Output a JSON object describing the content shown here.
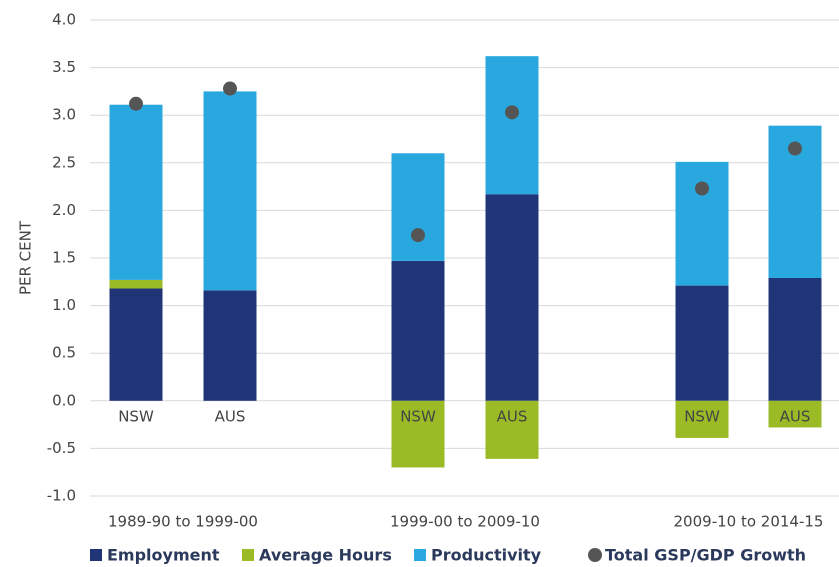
{
  "chart_data": {
    "type": "bar",
    "stacked": true,
    "y_label": "PER CENT",
    "categories": [
      "NSW",
      "AUS",
      "NSW",
      "AUS",
      "NSW",
      "AUS"
    ],
    "group_labels": [
      "1989-90 to 1999-00",
      "1999-00 to 2009-10",
      "2009-10 to 2014-15"
    ],
    "series": [
      {
        "name": "Employment",
        "type": "bar",
        "color": "#1f3578",
        "values": [
          1.18,
          1.16,
          1.47,
          2.17,
          1.21,
          1.29
        ]
      },
      {
        "name": "Average Hours",
        "type": "bar",
        "color": "#9bbb26",
        "values": [
          0.09,
          0,
          -0.7,
          -0.61,
          -0.39,
          -0.28
        ]
      },
      {
        "name": "Productivity",
        "type": "bar",
        "color": "#29a8e0",
        "values": [
          1.84,
          2.09,
          1.13,
          1.45,
          1.3,
          1.6
        ]
      },
      {
        "name": "Total GSP/GDP Growth",
        "type": "scatter",
        "color": "#555555",
        "values": [
          3.12,
          3.28,
          1.74,
          3.03,
          2.23,
          2.65
        ]
      }
    ],
    "ylim": [
      -1,
      4
    ],
    "yticks": [
      {
        "value": -1,
        "label": "-1.0"
      },
      {
        "value": -0.5,
        "label": "-0.5"
      },
      {
        "value": 0,
        "label": "0.0"
      },
      {
        "value": 0.5,
        "label": "0.5"
      },
      {
        "value": 1,
        "label": "1.0"
      },
      {
        "value": 1.5,
        "label": "1.5"
      },
      {
        "value": 2,
        "label": "2.0"
      },
      {
        "value": 2.5,
        "label": "2.5"
      },
      {
        "value": 3,
        "label": "3.0"
      },
      {
        "value": 3.5,
        "label": "3.5"
      },
      {
        "value": 4,
        "label": "4.0"
      }
    ],
    "grid": true
  }
}
